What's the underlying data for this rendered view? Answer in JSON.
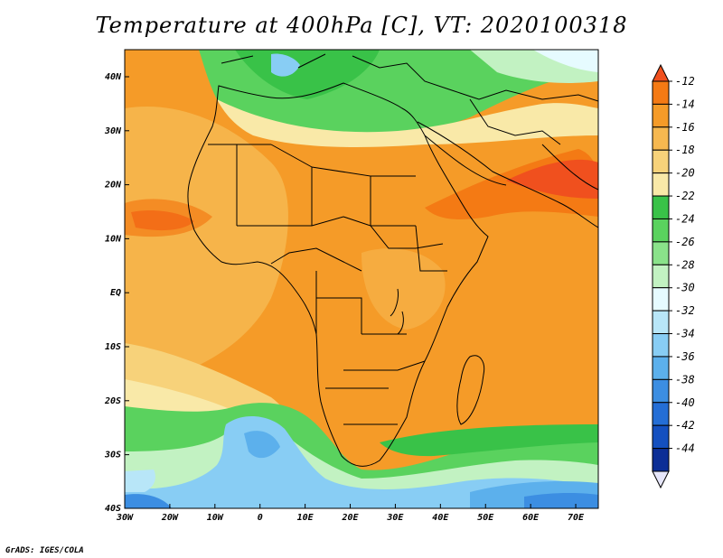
{
  "title": "Temperature at 400hPa [C], VT: 2020100318",
  "credit": "GrADS: IGES/COLA",
  "x_ticks": [
    "30W",
    "20W",
    "10W",
    "0",
    "10E",
    "20E",
    "30E",
    "40E",
    "50E",
    "60E",
    "70E"
  ],
  "y_ticks": [
    "40N",
    "30N",
    "20N",
    "10N",
    "EQ",
    "10S",
    "20S",
    "30S",
    "40S"
  ],
  "colorbar": {
    "levels": [
      "-12",
      "-14",
      "-16",
      "-18",
      "-20",
      "-22",
      "-24",
      "-26",
      "-28",
      "-30",
      "-32",
      "-34",
      "-36",
      "-38",
      "-40",
      "-42",
      "-44"
    ],
    "colors": [
      "#f0501e",
      "#f47a14",
      "#f59b28",
      "#f6b850",
      "#f7d27a",
      "#f9e9a8",
      "#39c248",
      "#5ad25e",
      "#8ae28a",
      "#c2f2c2",
      "#e6fbff",
      "#b8e6f8",
      "#88cdf4",
      "#5cb0ec",
      "#3c8ee2",
      "#246ed6",
      "#1450c0",
      "#0c2e96",
      "#e6e6fa"
    ]
  },
  "colors": {
    "field_warm": "#f59b28",
    "field_hot": "#f0501e",
    "field_green": "#5ad25e",
    "field_blue": "#88cdf4"
  }
}
